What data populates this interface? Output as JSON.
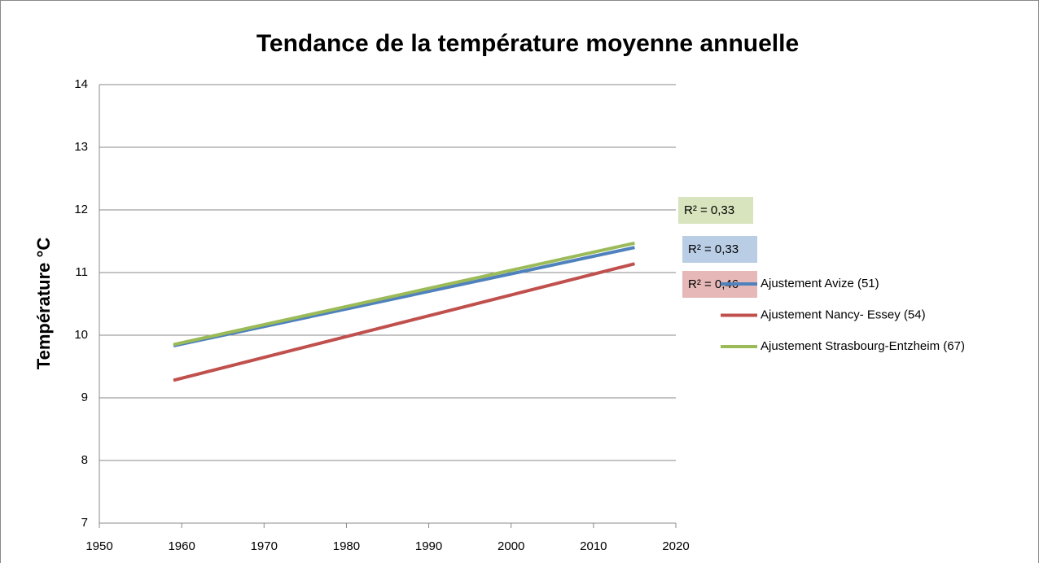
{
  "chart_data": {
    "type": "line",
    "title": "Tendance de la température moyenne annuelle",
    "y_label": "Température °C",
    "x": [
      1959,
      2015
    ],
    "series": [
      {
        "name": "Ajustement Avize (51)",
        "color": "#4f81bd",
        "values": [
          9.83,
          11.4
        ]
      },
      {
        "name": "Ajustement Nancy- Essey (54)",
        "color": "#c0504d",
        "values": [
          9.28,
          11.14
        ]
      },
      {
        "name": "Ajustement Strasbourg-Entzheim (67)",
        "color": "#9bbb59",
        "values": [
          9.85,
          11.47
        ]
      }
    ],
    "annotations": [
      {
        "text": "R² = 0,33",
        "color": "#d7e4bd"
      },
      {
        "text": "R² = 0,33",
        "color": "#b9cde5"
      },
      {
        "text": "R² = 0,46",
        "color": "#e6b9b8"
      }
    ],
    "xlim": [
      1950,
      2020
    ],
    "xticks": [
      1950,
      1960,
      1970,
      1980,
      1990,
      2000,
      2010,
      2020
    ],
    "ylim": [
      7,
      14
    ],
    "yticks": [
      7,
      8,
      9,
      10,
      11,
      12,
      13,
      14
    ],
    "grid": true,
    "legend": "right"
  }
}
